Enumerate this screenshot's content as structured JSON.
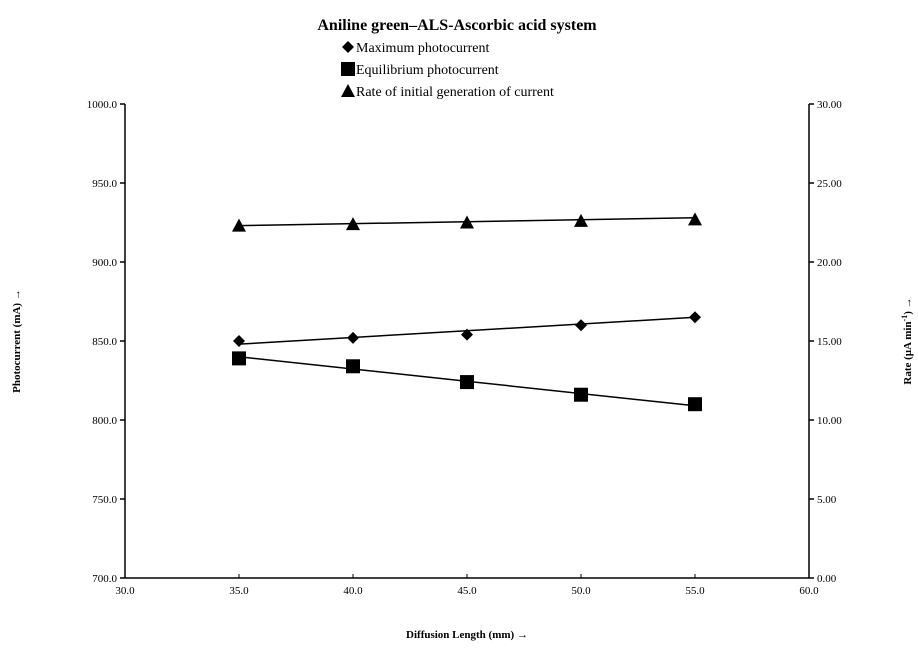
{
  "chart_data": {
    "type": "scatter",
    "title": "Aniline green–ALS-Ascorbic acid system",
    "xlabel": "Diffusion Length (mm) →",
    "ylabel_left": "Photocurrent (mA) →",
    "ylabel_right_main": "Rate (µA min",
    "ylabel_right_sup": "-1",
    "ylabel_right_tail": ") →",
    "xlim": [
      30.0,
      60.0
    ],
    "ylim_left": [
      700.0,
      1000.0
    ],
    "ylim_right": [
      0.0,
      30.0
    ],
    "x_ticks": [
      "30.0",
      "35.0",
      "40.0",
      "45.0",
      "50.0",
      "55.0",
      "60.0"
    ],
    "y_left_ticks": [
      "700.0",
      "750.0",
      "800.0",
      "850.0",
      "900.0",
      "950.0",
      "1000.0"
    ],
    "y_right_ticks": [
      "0.00",
      "5.00",
      "10.00",
      "15.00",
      "20.00",
      "25.00",
      "30.00"
    ],
    "legend_position": "top-center",
    "grid": false,
    "series": [
      {
        "name": "Maximum photocurrent",
        "marker": "diamond",
        "axis": "left",
        "x": [
          35,
          40,
          45,
          50,
          55
        ],
        "values": [
          850,
          852,
          854,
          860,
          865
        ],
        "trend": [
          848,
          865
        ]
      },
      {
        "name": "Equilibrium photocurrent",
        "marker": "square",
        "axis": "left",
        "x": [
          35,
          40,
          45,
          50,
          55
        ],
        "values": [
          839,
          834,
          824,
          816,
          810
        ],
        "trend": [
          840,
          809
        ]
      },
      {
        "name": "Rate of initial generation of current",
        "marker": "triangle",
        "axis": "right",
        "x": [
          35,
          40,
          45,
          50,
          55
        ],
        "values": [
          22.3,
          22.4,
          22.5,
          22.6,
          22.7
        ],
        "trend": [
          22.3,
          22.8
        ]
      }
    ]
  }
}
